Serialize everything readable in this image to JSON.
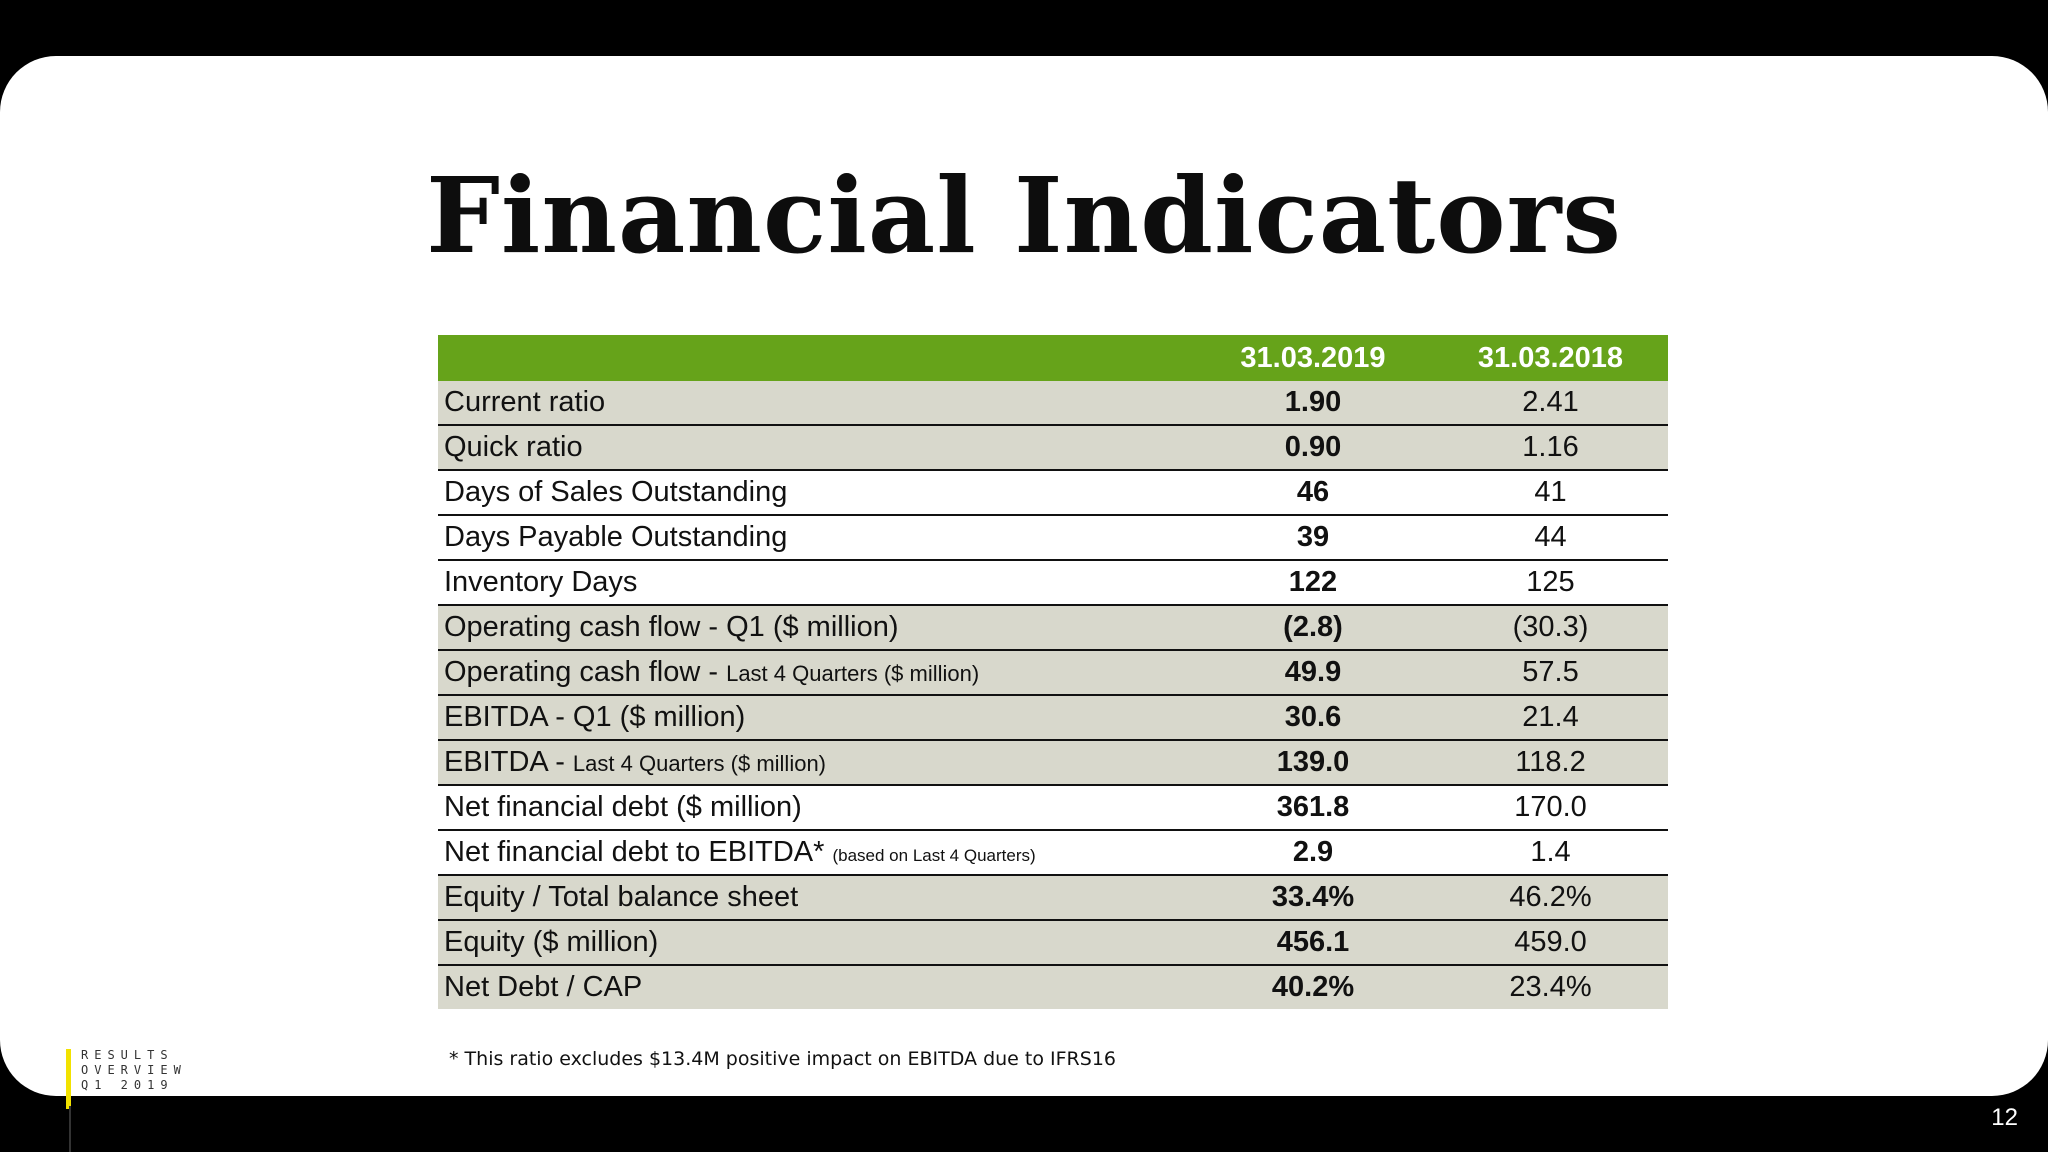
{
  "title": "Financial Indicators",
  "table": {
    "headers": [
      "",
      "31.03.2019",
      "31.03.2018"
    ],
    "rows": [
      {
        "label": "Current ratio",
        "label_small": "",
        "label_tiny": "",
        "v2019": "1.90",
        "v2018": "2.41",
        "shade": true
      },
      {
        "label": "Quick ratio",
        "label_small": "",
        "label_tiny": "",
        "v2019": "0.90",
        "v2018": "1.16",
        "shade": true
      },
      {
        "label": "Days of Sales Outstanding",
        "label_small": "",
        "label_tiny": "",
        "v2019": "46",
        "v2018": "41",
        "shade": false
      },
      {
        "label": "Days Payable Outstanding",
        "label_small": "",
        "label_tiny": "",
        "v2019": "39",
        "v2018": "44",
        "shade": false
      },
      {
        "label": "Inventory Days",
        "label_small": "",
        "label_tiny": "",
        "v2019": "122",
        "v2018": "125",
        "shade": false
      },
      {
        "label": "Operating cash flow - Q1 ($ million)",
        "label_small": "",
        "label_tiny": "",
        "v2019": "(2.8)",
        "v2018": "(30.3)",
        "shade": true
      },
      {
        "label": "Operating cash flow - ",
        "label_small": "Last 4 Quarters ($ million)",
        "label_tiny": "",
        "v2019": "49.9",
        "v2018": "57.5",
        "shade": true
      },
      {
        "label": "EBITDA - Q1 ($ million)",
        "label_small": "",
        "label_tiny": "",
        "v2019": "30.6",
        "v2018": "21.4",
        "shade": true
      },
      {
        "label": "EBITDA - ",
        "label_small": "Last 4 Quarters ($ million)",
        "label_tiny": "",
        "v2019": "139.0",
        "v2018": "118.2",
        "shade": true
      },
      {
        "label": "Net financial debt ($ million)",
        "label_small": "",
        "label_tiny": "",
        "v2019": "361.8",
        "v2018": "170.0",
        "shade": false
      },
      {
        "label": "Net financial debt to EBITDA* ",
        "label_small": "",
        "label_tiny": "(based on Last 4 Quarters)",
        "v2019": "2.9",
        "v2018": "1.4",
        "shade": false
      },
      {
        "label": "Equity / Total balance sheet",
        "label_small": "",
        "label_tiny": "",
        "v2019": "33.4%",
        "v2018": "46.2%",
        "shade": true
      },
      {
        "label": "Equity ($ million)",
        "label_small": "",
        "label_tiny": "",
        "v2019": "456.1",
        "v2018": "459.0",
        "shade": true
      },
      {
        "label": "Net Debt / CAP",
        "label_small": "",
        "label_tiny": "",
        "v2019": "40.2%",
        "v2018": "23.4%",
        "shade": true
      }
    ]
  },
  "footnote": "* This ratio excludes $13.4M positive impact on EBITDA due to IFRS16",
  "side_label": [
    "RESULTS",
    "OVERVIEW",
    "Q1 2019"
  ],
  "page_number": "12",
  "colors": {
    "header_green": "#66a31a",
    "row_shade": "#d8d8cc",
    "accent_yellow": "#f2e200"
  }
}
